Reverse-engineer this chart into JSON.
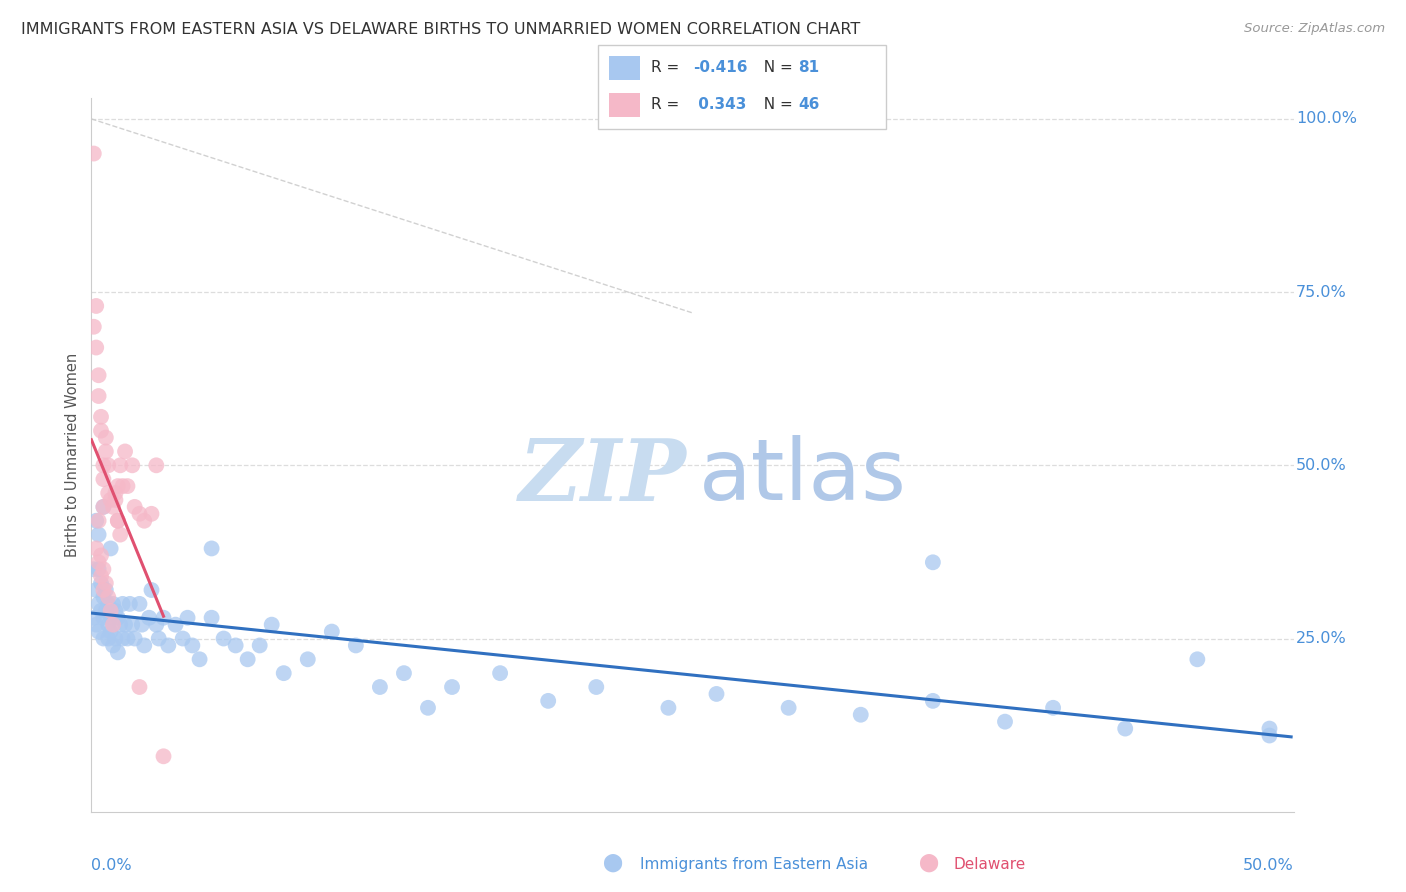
{
  "title": "IMMIGRANTS FROM EASTERN ASIA VS DELAWARE BIRTHS TO UNMARRIED WOMEN CORRELATION CHART",
  "source": "Source: ZipAtlas.com",
  "ylabel": "Births to Unmarried Women",
  "right_yticks": [
    "100.0%",
    "75.0%",
    "50.0%",
    "25.0%"
  ],
  "right_ytick_vals": [
    1.0,
    0.75,
    0.5,
    0.25
  ],
  "legend_blue_r": "-0.416",
  "legend_blue_n": "81",
  "legend_pink_r": "0.343",
  "legend_pink_n": "46",
  "blue_color": "#A8C8F0",
  "pink_color": "#F5B8C8",
  "blue_line_color": "#3070C0",
  "pink_line_color": "#E05070",
  "grid_color": "#DDDDDD",
  "right_axis_color": "#4A90D9",
  "watermark_zip_color": "#C8DCF0",
  "watermark_atlas_color": "#B0C8E8",
  "blue_x": [
    0.001,
    0.001,
    0.002,
    0.002,
    0.003,
    0.003,
    0.003,
    0.004,
    0.004,
    0.005,
    0.005,
    0.005,
    0.006,
    0.006,
    0.007,
    0.007,
    0.007,
    0.008,
    0.008,
    0.009,
    0.009,
    0.01,
    0.01,
    0.011,
    0.011,
    0.012,
    0.013,
    0.013,
    0.014,
    0.015,
    0.016,
    0.017,
    0.018,
    0.02,
    0.021,
    0.022,
    0.024,
    0.025,
    0.027,
    0.028,
    0.03,
    0.032,
    0.035,
    0.038,
    0.04,
    0.042,
    0.045,
    0.05,
    0.055,
    0.06,
    0.065,
    0.07,
    0.075,
    0.08,
    0.09,
    0.1,
    0.11,
    0.12,
    0.13,
    0.14,
    0.15,
    0.17,
    0.19,
    0.21,
    0.24,
    0.26,
    0.29,
    0.32,
    0.35,
    0.38,
    0.4,
    0.43,
    0.46,
    0.49,
    0.005,
    0.002,
    0.008,
    0.003,
    0.05,
    0.49,
    0.35
  ],
  "blue_y": [
    0.35,
    0.28,
    0.32,
    0.27,
    0.3,
    0.35,
    0.26,
    0.29,
    0.33,
    0.31,
    0.28,
    0.25,
    0.29,
    0.32,
    0.27,
    0.3,
    0.25,
    0.28,
    0.26,
    0.3,
    0.24,
    0.29,
    0.25,
    0.28,
    0.23,
    0.27,
    0.25,
    0.3,
    0.27,
    0.25,
    0.3,
    0.27,
    0.25,
    0.3,
    0.27,
    0.24,
    0.28,
    0.32,
    0.27,
    0.25,
    0.28,
    0.24,
    0.27,
    0.25,
    0.28,
    0.24,
    0.22,
    0.28,
    0.25,
    0.24,
    0.22,
    0.24,
    0.27,
    0.2,
    0.22,
    0.26,
    0.24,
    0.18,
    0.2,
    0.15,
    0.18,
    0.2,
    0.16,
    0.18,
    0.15,
    0.17,
    0.15,
    0.14,
    0.16,
    0.13,
    0.15,
    0.12,
    0.22,
    0.11,
    0.44,
    0.42,
    0.38,
    0.4,
    0.38,
    0.12,
    0.36
  ],
  "pink_x": [
    0.001,
    0.001,
    0.002,
    0.002,
    0.003,
    0.003,
    0.004,
    0.004,
    0.005,
    0.005,
    0.005,
    0.006,
    0.006,
    0.007,
    0.007,
    0.008,
    0.009,
    0.01,
    0.011,
    0.011,
    0.012,
    0.013,
    0.014,
    0.015,
    0.017,
    0.018,
    0.02,
    0.022,
    0.025,
    0.027,
    0.003,
    0.004,
    0.005,
    0.006,
    0.007,
    0.008,
    0.009,
    0.01,
    0.011,
    0.012,
    0.002,
    0.003,
    0.004,
    0.005,
    0.02,
    0.03
  ],
  "pink_y": [
    0.95,
    0.7,
    0.73,
    0.67,
    0.63,
    0.6,
    0.57,
    0.55,
    0.5,
    0.48,
    0.44,
    0.52,
    0.54,
    0.5,
    0.46,
    0.45,
    0.44,
    0.46,
    0.42,
    0.47,
    0.5,
    0.47,
    0.52,
    0.47,
    0.5,
    0.44,
    0.43,
    0.42,
    0.43,
    0.5,
    0.42,
    0.37,
    0.35,
    0.33,
    0.31,
    0.29,
    0.27,
    0.45,
    0.42,
    0.4,
    0.38,
    0.36,
    0.34,
    0.32,
    0.18,
    0.08
  ]
}
